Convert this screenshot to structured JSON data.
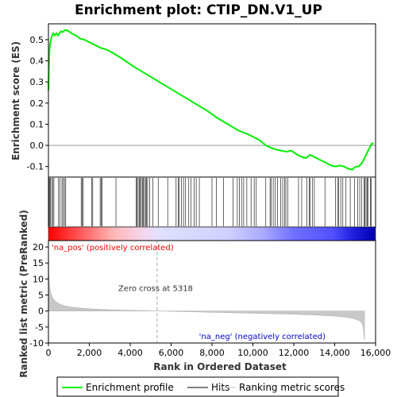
{
  "chart_data": [
    {
      "type": "line",
      "title": "Enrichment plot: CTIP_DN.V1_UP",
      "ylabel": "Enrichment score (ES)",
      "xlim": [
        0,
        15500
      ],
      "ylim": [
        -0.15,
        0.575
      ],
      "yticks": [
        0.5,
        0.4,
        0.3,
        0.2,
        0.1,
        0.0,
        -0.1
      ],
      "ytick_labels": [
        "0.5",
        "0.4",
        "0.3",
        "0.2",
        "0.1",
        "0.0",
        "-0.1"
      ],
      "series": [
        {
          "name": "Enrichment profile",
          "color": "#00ee00",
          "x": [
            0,
            40,
            80,
            120,
            170,
            230,
            300,
            380,
            450,
            520,
            600,
            660,
            720,
            780,
            850,
            950,
            1100,
            1300,
            1500,
            1700,
            1900,
            2100,
            2300,
            2500,
            2700,
            3000,
            3500,
            4000,
            4500,
            5000,
            5500,
            6000,
            6500,
            7000,
            7500,
            8000,
            8500,
            9000,
            9400,
            9700,
            10000,
            10300,
            10500,
            10800,
            11000,
            11300,
            11500,
            11800,
            12000,
            12200,
            12400,
            12600,
            12800,
            13000,
            13200,
            13400,
            13600,
            13800,
            14000,
            14200,
            14400,
            14500,
            14600,
            14700,
            14800,
            14900,
            14950,
            15000,
            15050,
            15100,
            15150,
            15200,
            15250,
            15300,
            15350,
            15400
          ],
          "y": [
            0.26,
            0.44,
            0.48,
            0.5,
            0.52,
            0.53,
            0.52,
            0.53,
            0.52,
            0.53,
            0.54,
            0.535,
            0.54,
            0.545,
            0.545,
            0.54,
            0.53,
            0.52,
            0.505,
            0.5,
            0.49,
            0.48,
            0.47,
            0.46,
            0.455,
            0.44,
            0.41,
            0.375,
            0.345,
            0.315,
            0.285,
            0.255,
            0.225,
            0.195,
            0.165,
            0.13,
            0.1,
            0.07,
            0.055,
            0.04,
            0.025,
            0.0,
            -0.01,
            -0.02,
            -0.025,
            -0.03,
            -0.025,
            -0.045,
            -0.055,
            -0.06,
            -0.045,
            -0.055,
            -0.065,
            -0.075,
            -0.085,
            -0.095,
            -0.1,
            -0.095,
            -0.1,
            -0.11,
            -0.115,
            -0.105,
            -0.1,
            -0.1,
            -0.09,
            -0.075,
            -0.065,
            -0.055,
            -0.045,
            -0.035,
            -0.025,
            -0.015,
            -0.005,
            0.005,
            0.01,
            0.005
          ]
        }
      ],
      "baseline": 0.0
    },
    {
      "type": "scatter",
      "name": "Hits",
      "xlim": [
        0,
        15500
      ],
      "hits_x": [
        20,
        60,
        100,
        150,
        200,
        260,
        480,
        550,
        640,
        700,
        760,
        820,
        1550,
        1600,
        1650,
        2050,
        2100,
        2450,
        2500,
        2550,
        3200,
        4150,
        4200,
        4250,
        4300,
        4350,
        4400,
        4450,
        4500,
        4550,
        4600,
        4650,
        4700,
        4800,
        4950,
        5200,
        5650,
        6050,
        6150,
        6200,
        6300,
        6400,
        6500,
        6650,
        6750,
        6900,
        7000,
        7150,
        7750,
        7950,
        8300,
        8750,
        8950,
        9050,
        9150,
        9250,
        9400,
        9600,
        9750,
        9850,
        10300,
        10500,
        10550,
        10650,
        10750,
        10850,
        11000,
        11100,
        11200,
        11250,
        11350,
        11850,
        12000,
        12250,
        12350,
        12400,
        12500,
        12600,
        13100,
        13600,
        13700,
        13750,
        13850,
        13950,
        14100,
        14300,
        14500,
        14650,
        14750,
        14850,
        14950,
        15000,
        15050,
        15100,
        15150,
        15250,
        15300
      ]
    },
    {
      "type": "heatmap",
      "name": "Rank gradient",
      "xlim": [
        0,
        15500
      ],
      "stops": [
        {
          "pos": 0.0,
          "color": "#ff0000"
        },
        {
          "pos": 0.14,
          "color": "#ff8080"
        },
        {
          "pos": 0.2,
          "color": "#ffb8b8"
        },
        {
          "pos": 0.3,
          "color": "#f2d8f2"
        },
        {
          "pos": 0.34,
          "color": "#e0e0ff"
        },
        {
          "pos": 0.55,
          "color": "#d0d0ff"
        },
        {
          "pos": 0.66,
          "color": "#a8a8ff"
        },
        {
          "pos": 0.75,
          "color": "#7070ff"
        },
        {
          "pos": 0.87,
          "color": "#5050ff"
        },
        {
          "pos": 0.93,
          "color": "#2020e0"
        },
        {
          "pos": 1.0,
          "color": "#0000b0"
        }
      ]
    },
    {
      "type": "area",
      "ylabel": "Ranked list metric (PreRanked)",
      "xlabel": "Rank in Ordered Dataset",
      "xlim": [
        0,
        16000
      ],
      "ylim": [
        -10,
        22
      ],
      "xticks": [
        0,
        2000,
        4000,
        6000,
        8000,
        10000,
        12000,
        14000,
        16000
      ],
      "xtick_labels": [
        "0",
        "2,000",
        "4,000",
        "6,000",
        "8,000",
        "10,000",
        "12,000",
        "14,000",
        "16,000"
      ],
      "yticks": [
        20,
        15,
        10,
        5,
        0,
        -5,
        -10
      ],
      "ytick_labels": [
        "20",
        "15",
        "10",
        "5",
        "0",
        "-5",
        "-10"
      ],
      "x": [
        0,
        20,
        50,
        100,
        150,
        200,
        300,
        400,
        600,
        800,
        1000,
        1500,
        2000,
        3000,
        4000,
        5000,
        5318,
        6000,
        7000,
        8000,
        9000,
        10000,
        11000,
        12000,
        13000,
        14000,
        14500,
        14800,
        15000,
        15200,
        15300,
        15380,
        15420,
        15450,
        15460
      ],
      "values": [
        21,
        12,
        8,
        6,
        5,
        4.2,
        3.3,
        2.7,
        2.0,
        1.6,
        1.3,
        0.95,
        0.7,
        0.4,
        0.2,
        0.05,
        0.0,
        -0.1,
        -0.25,
        -0.4,
        -0.55,
        -0.7,
        -0.85,
        -1.0,
        -1.25,
        -1.6,
        -1.9,
        -2.2,
        -2.5,
        -3.0,
        -3.5,
        -4.5,
        -6.5,
        -8.5,
        -9.0
      ],
      "zero_cross_x": 5318,
      "annotations": {
        "pos_label": "'na_pos' (positively correlated)",
        "neg_label": "'na_neg' (negatively correlated)",
        "zero_label": "Zero cross at 5318"
      }
    }
  ],
  "legend": {
    "items": [
      {
        "label": "Enrichment profile",
        "color": "#00ee00"
      },
      {
        "label": "Hits",
        "color": "#000000"
      },
      {
        "label": "Ranking metric scores",
        "color": "#c8c8c8"
      }
    ]
  },
  "colors": {
    "profile": "#00ee00",
    "metric_fill": "#c8c8c8",
    "pos_text": "#ff0000",
    "neg_text": "#0000cc",
    "zero_text": "#333333",
    "frame": "#000000"
  }
}
